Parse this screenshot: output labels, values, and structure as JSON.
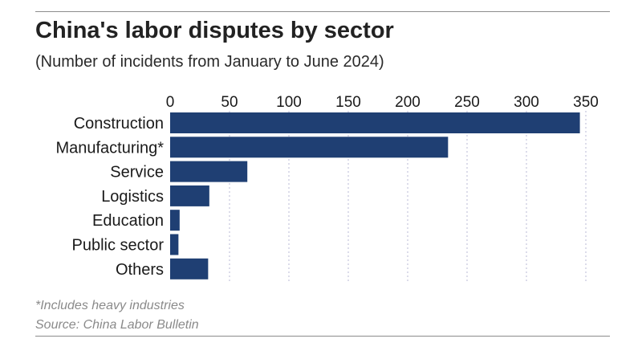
{
  "header": {
    "title": "China's labor disputes by sector",
    "subtitle": "(Number of incidents from January to June 2024)"
  },
  "footer": {
    "footnote": "*Includes heavy industries",
    "source": "Source: China Labor Bulletin"
  },
  "colors": {
    "bar": "#1f3f73",
    "grid": "#b9b9d6",
    "text": "#1a1a1a"
  },
  "chart_data": {
    "type": "bar",
    "orientation": "horizontal",
    "title": "China's labor disputes by sector",
    "subtitle": "(Number of incidents from January to June 2024)",
    "categories": [
      "Construction",
      "Manufacturing*",
      "Service",
      "Logistics",
      "Education",
      "Public sector",
      "Others"
    ],
    "values": [
      345,
      234,
      65,
      33,
      8,
      7,
      32
    ],
    "xlim": [
      0,
      350
    ],
    "xticks": [
      0,
      50,
      100,
      150,
      200,
      250,
      300,
      350
    ],
    "x_axis_position": "top",
    "grid": "vertical dotted",
    "xlabel": "",
    "ylabel": ""
  }
}
